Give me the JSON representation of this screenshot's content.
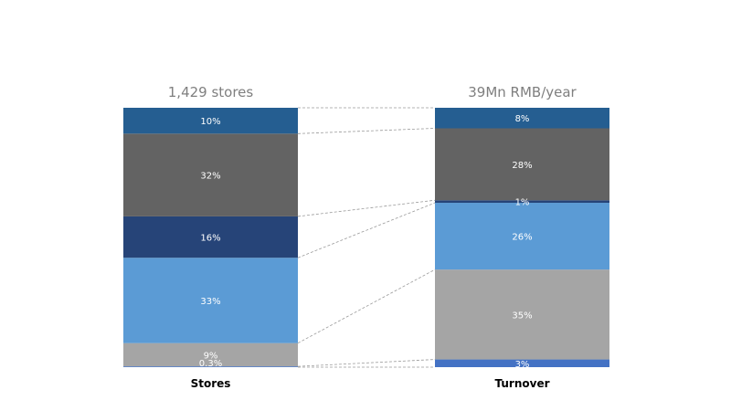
{
  "chart_data": {
    "type": "bar",
    "stacked": true,
    "normalized": true,
    "categories": [
      "Stores",
      "Turnover"
    ],
    "totals": [
      "1,429 stores",
      "39Mn RMB/year"
    ],
    "segment_order": "bottom-to-top",
    "series": [
      {
        "color": "#4472c4",
        "values": [
          0.3,
          3
        ],
        "labels": [
          "0.3%",
          "3%"
        ]
      },
      {
        "color": "#a5a5a5",
        "values": [
          9,
          35
        ],
        "labels": [
          "9%",
          "35%"
        ]
      },
      {
        "color": "#5b9bd5",
        "values": [
          33,
          26
        ],
        "labels": [
          "33%",
          "26%"
        ]
      },
      {
        "color": "#264478",
        "values": [
          16,
          1
        ],
        "labels": [
          "16%",
          "1%"
        ]
      },
      {
        "color": "#636363",
        "values": [
          32,
          28
        ],
        "labels": [
          "32%",
          "28%"
        ]
      },
      {
        "color": "#255e91",
        "values": [
          10,
          8
        ],
        "labels": [
          "10%",
          "8%"
        ]
      }
    ],
    "connectors": "dashed lines linking segment boundaries between the two bars",
    "legend": "none",
    "grid": false
  }
}
